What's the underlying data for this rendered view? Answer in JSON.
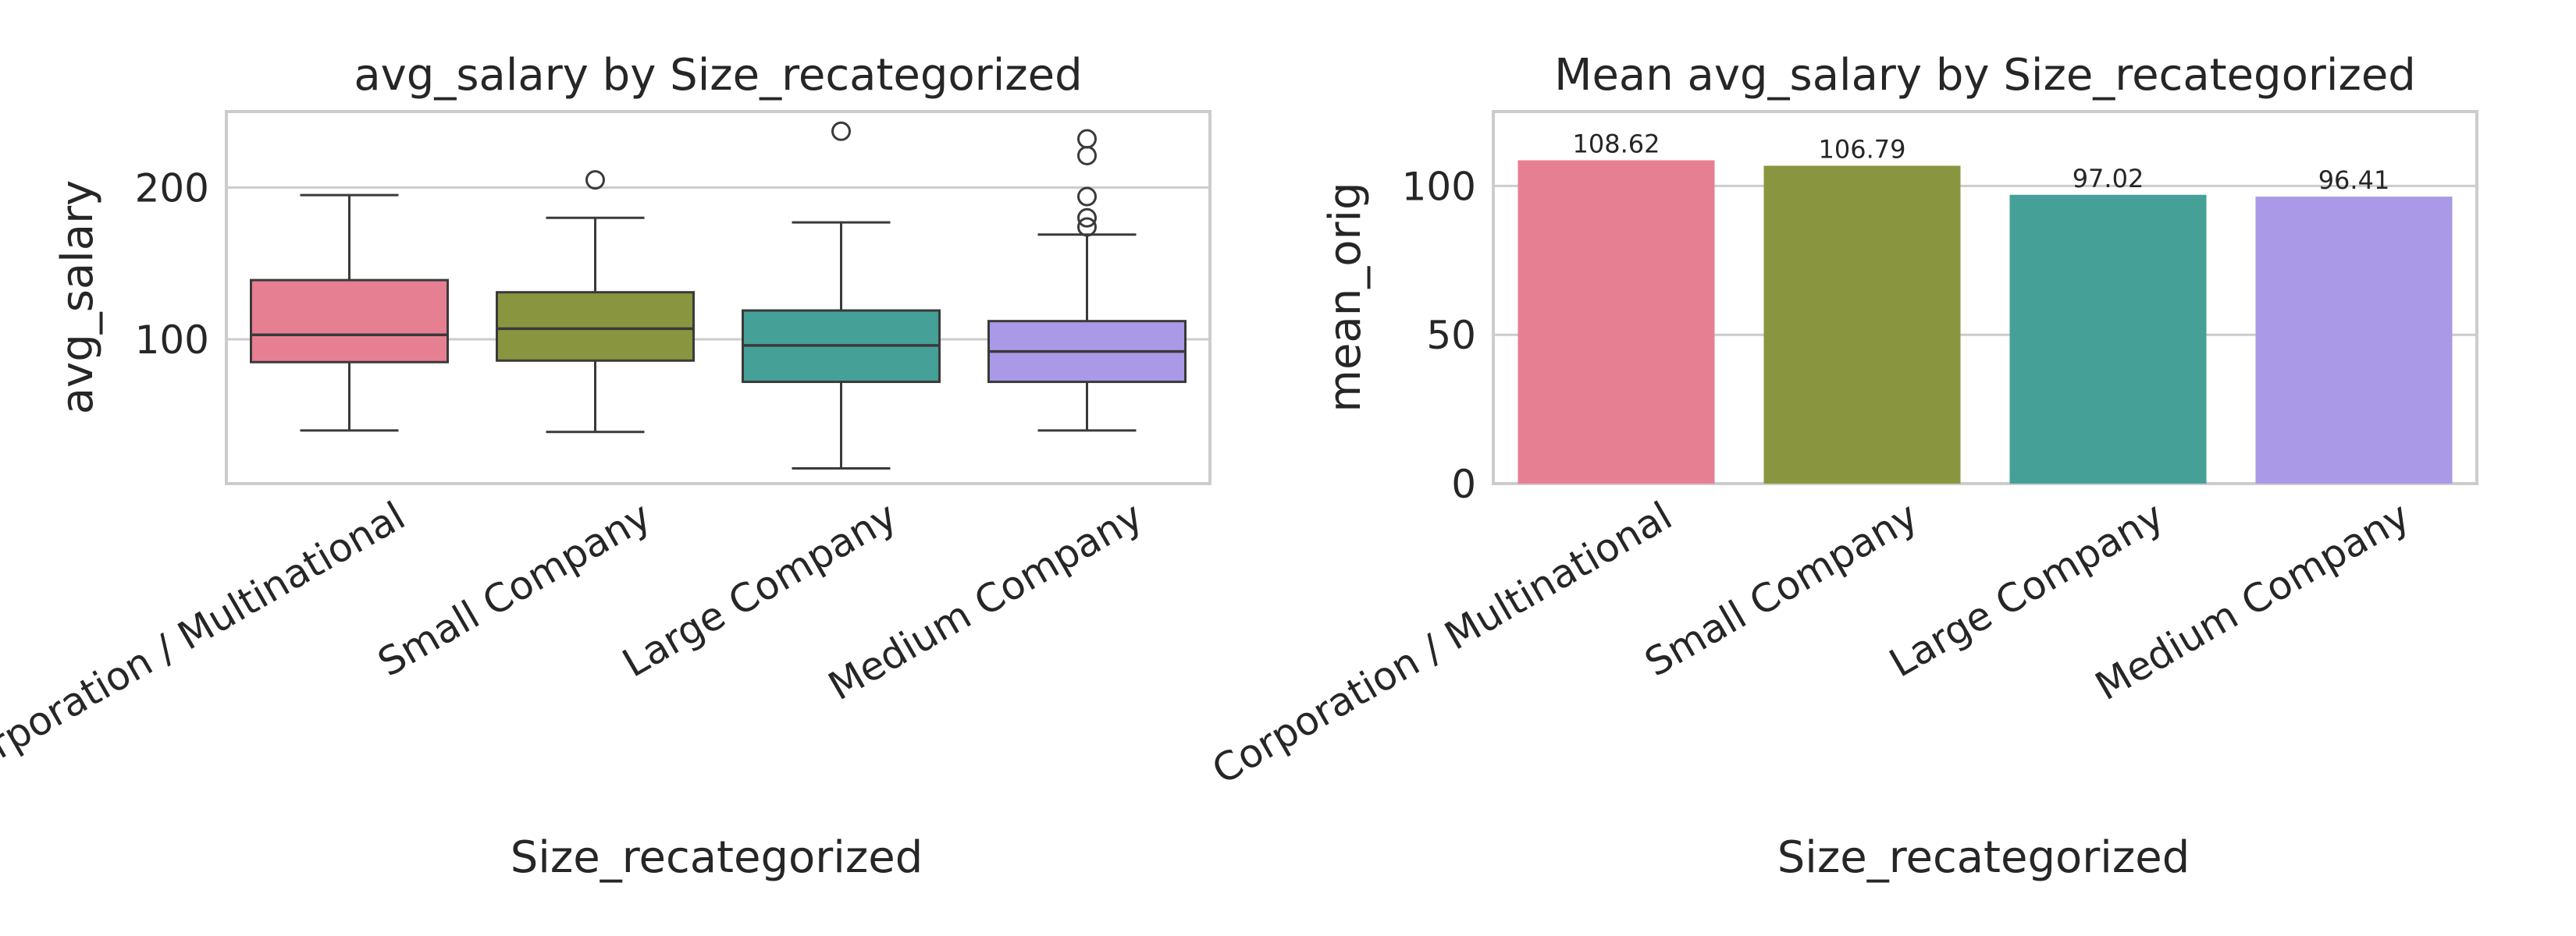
{
  "chart_data": [
    {
      "type": "box",
      "title": "avg_salary by Size_recategorized",
      "xlabel": "Size_recategorized",
      "ylabel": "avg_salary",
      "ylim": [
        5,
        250
      ],
      "yticks": [
        100,
        200
      ],
      "grid": true,
      "categories": [
        "Corporation / Multinational",
        "Small Company",
        "Large Company",
        "Medium Company"
      ],
      "boxes": [
        {
          "category": "Corporation / Multinational",
          "whisker_low": 40,
          "q1": 85,
          "median": 103,
          "q3": 139,
          "whisker_high": 195,
          "outliers": [],
          "color": "#e77f92"
        },
        {
          "category": "Small Company",
          "whisker_low": 39,
          "q1": 86,
          "median": 107,
          "q3": 131,
          "whisker_high": 180,
          "outliers": [
            205
          ],
          "color": "#8a963f"
        },
        {
          "category": "Large Company",
          "whisker_low": 15,
          "q1": 72,
          "median": 96,
          "q3": 119,
          "whisker_high": 177,
          "outliers": [
            237
          ],
          "color": "#45a098"
        },
        {
          "category": "Medium Company",
          "whisker_low": 40,
          "q1": 72,
          "median": 92,
          "q3": 112,
          "whisker_high": 169,
          "outliers": [
            174,
            180,
            194,
            221,
            232
          ],
          "color": "#a999e6"
        }
      ]
    },
    {
      "type": "bar",
      "title": "Mean avg_salary by Size_recategorized",
      "xlabel": "Size_recategorized",
      "ylabel": "mean_orig",
      "ylim": [
        0,
        125
      ],
      "yticks": [
        0,
        50,
        100
      ],
      "grid": true,
      "categories": [
        "Corporation / Multinational",
        "Small Company",
        "Large Company",
        "Medium Company"
      ],
      "values": [
        108.62,
        106.79,
        97.02,
        96.41
      ],
      "data_labels": [
        "108.62",
        "106.79",
        "97.02",
        "96.41"
      ],
      "colors": [
        "#e77f92",
        "#8a963f",
        "#45a098",
        "#a999e6"
      ]
    }
  ]
}
